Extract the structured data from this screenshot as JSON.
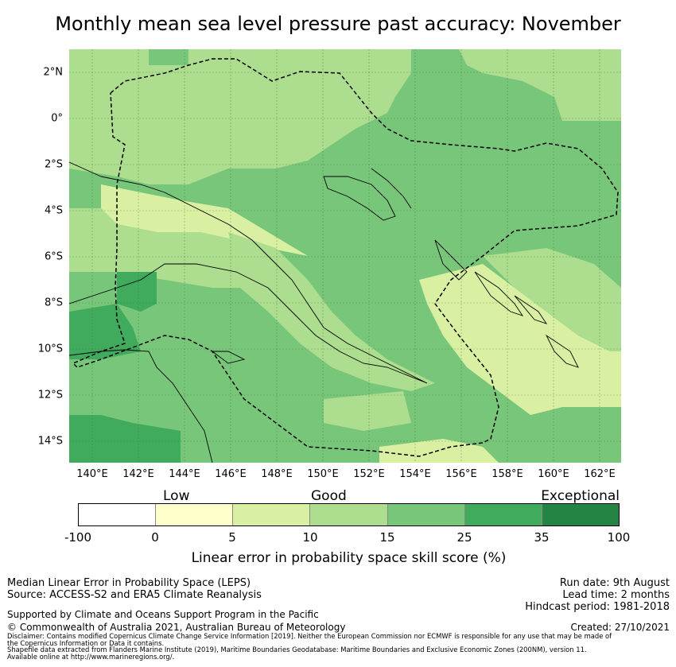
{
  "title": "Monthly mean sea level pressure past accuracy: November",
  "map": {
    "y_labels": [
      "2°N",
      "0°",
      "2°S",
      "4°S",
      "6°S",
      "8°S",
      "10°S",
      "12°S",
      "14°S"
    ],
    "x_labels": [
      "140°E",
      "142°E",
      "144°E",
      "146°E",
      "148°E",
      "150°E",
      "152°E",
      "154°E",
      "156°E",
      "158°E",
      "160°E",
      "162°E"
    ],
    "lon_range": [
      139,
      163
    ],
    "lat_range": [
      -15,
      3
    ],
    "dominant_category": "Good (15-25)"
  },
  "colorbar": {
    "category_labels": [
      "Low",
      "Good",
      "Exceptional"
    ],
    "ticks": [
      "-100",
      "0",
      "5",
      "10",
      "15",
      "25",
      "35",
      "100"
    ],
    "colors": [
      "#ffffff",
      "#ffffcc",
      "#d9f0a3",
      "#addd8e",
      "#78c679",
      "#41ab5d",
      "#238443"
    ],
    "label": "Linear error in probability space skill score (%)"
  },
  "info_left": {
    "line1": "Median Linear Error in Probability Space (LEPS)",
    "line2": "Source: ACCESS-S2 and ERA5 Climate Reanalysis",
    "line3": "Supported by Climate and Oceans Support Program in the Pacific",
    "line4": "© Commonwealth of Australia 2021, Australian Bureau of Meteorology"
  },
  "info_right": {
    "run_date": "Run date: 9th August",
    "lead_time": "Lead time: 2 months",
    "hindcast": "Hindcast period: 1981-2018",
    "created": "Created: 27/10/2021"
  },
  "disclaimer": {
    "line1": "Disclaimer: Contains modified Copernicus Climate Change Service Information [2019]. Neither the European Commission nor ECMWF is responsible for any use that may be made of",
    "line2": "the Copernicus Information or Data it contains.",
    "line3": "Shapefile data extracted from Flanders Marine Institute (2019), Maritime Boundaries Geodatabase: Maritime Boundaries and Exclusive Economic Zones (200NM), version 11.",
    "line4": "Available online at http://www.marineregions.org/."
  }
}
